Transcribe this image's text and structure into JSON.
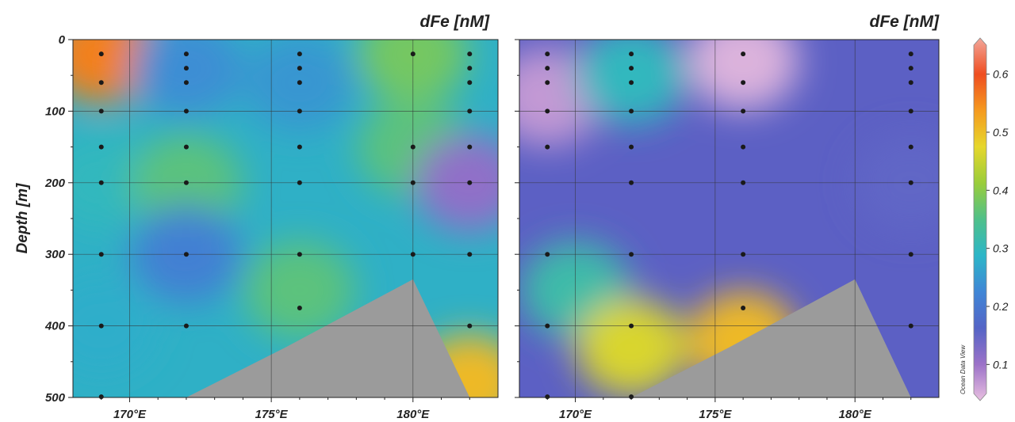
{
  "chart_data": {
    "type": "heatmap",
    "ylabel": "Depth [m]",
    "y_ticks": [
      "0",
      "100",
      "200",
      "300",
      "400",
      "500"
    ],
    "x_ticks": [
      "170°E",
      "175°E",
      "180°E"
    ],
    "xlim": [
      168,
      183
    ],
    "ylim": [
      500,
      0
    ],
    "grid": true,
    "panels": [
      {
        "title": "dFe [nM]",
        "stations_lon": [
          169,
          172,
          176,
          180,
          182
        ],
        "samples": {
          "169": [
            20,
            60,
            100,
            150,
            200,
            300,
            400,
            500
          ],
          "172": [
            20,
            40,
            60,
            100,
            150,
            200,
            300,
            400
          ],
          "176": [
            20,
            40,
            60,
            100,
            150,
            200,
            300,
            375
          ],
          "180": [
            20,
            150,
            200,
            300
          ],
          "182": [
            20,
            40,
            60,
            100,
            150,
            200,
            300,
            400
          ]
        },
        "field": [
          {
            "lon": 169,
            "depth": 20,
            "value": 0.55
          },
          {
            "lon": 169,
            "depth": 200,
            "value": 0.3
          },
          {
            "lon": 169,
            "depth": 400,
            "value": 0.28
          },
          {
            "lon": 172,
            "depth": 40,
            "value": 0.24
          },
          {
            "lon": 172,
            "depth": 200,
            "value": 0.36
          },
          {
            "lon": 172,
            "depth": 300,
            "value": 0.22
          },
          {
            "lon": 176,
            "depth": 60,
            "value": 0.25
          },
          {
            "lon": 176,
            "depth": 350,
            "value": 0.36
          },
          {
            "lon": 180,
            "depth": 20,
            "value": 0.38
          },
          {
            "lon": 180,
            "depth": 150,
            "value": 0.36
          },
          {
            "lon": 182,
            "depth": 200,
            "value": 0.12
          },
          {
            "lon": 182,
            "depth": 480,
            "value": 0.5
          }
        ]
      },
      {
        "title": "dFe [nM]",
        "stations_lon": [
          169,
          172,
          176,
          182
        ],
        "samples": {
          "169": [
            20,
            40,
            60,
            100,
            150,
            300,
            400,
            500
          ],
          "172": [
            20,
            40,
            60,
            100,
            150,
            200,
            300,
            400,
            500
          ],
          "176": [
            20,
            60,
            100,
            150,
            200,
            300,
            375
          ],
          "182": [
            20,
            40,
            60,
            100,
            150,
            200,
            300,
            400
          ]
        },
        "field": [
          {
            "lon": 169,
            "depth": 80,
            "value": 0.08
          },
          {
            "lon": 170,
            "depth": 350,
            "value": 0.32
          },
          {
            "lon": 172,
            "depth": 50,
            "value": 0.3
          },
          {
            "lon": 172,
            "depth": 430,
            "value": 0.46
          },
          {
            "lon": 176,
            "depth": 30,
            "value": 0.06
          },
          {
            "lon": 176,
            "depth": 420,
            "value": 0.5
          },
          {
            "lon": 182,
            "depth": 200,
            "value": 0.16
          }
        ]
      }
    ],
    "colorbar": {
      "min": 0.05,
      "max": 0.65,
      "ticks": [
        "0.1",
        "0.2",
        "0.3",
        "0.4",
        "0.5",
        "0.6"
      ],
      "tick_values": [
        0.1,
        0.2,
        0.3,
        0.4,
        0.5,
        0.6
      ],
      "colors": [
        "#e8bfe0",
        "#9c72c8",
        "#5464c6",
        "#3f86d6",
        "#2cb6c8",
        "#4fc08a",
        "#9acd3a",
        "#e6d72c",
        "#f59a1f",
        "#ef4d20",
        "#f2a79a"
      ]
    },
    "seafloor_color": "#9b9b9b",
    "seafloor": [
      {
        "lon": 172,
        "depth": 500
      },
      {
        "lon": 175.5,
        "depth": 430
      },
      {
        "lon": 180,
        "depth": 335
      },
      {
        "lon": 182,
        "depth": 500
      }
    ],
    "watermark": "Ocean Data View"
  }
}
